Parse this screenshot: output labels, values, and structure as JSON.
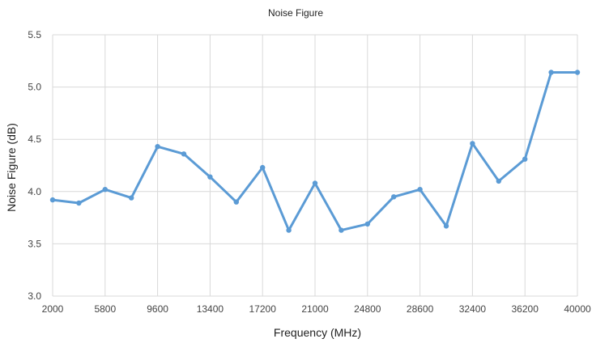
{
  "chart_data": {
    "type": "line",
    "title": "Noise Figure",
    "xlabel": "Frequency (MHz)",
    "ylabel": "Noise Figure (dB)",
    "xlim": [
      2000,
      40000
    ],
    "ylim": [
      3.0,
      5.5
    ],
    "x_tick_labels": [
      "2000",
      "5800",
      "9600",
      "13400",
      "17200",
      "21000",
      "24800",
      "28600",
      "32400",
      "36200",
      "40000"
    ],
    "y_tick_labels": [
      "3.0",
      "3.5",
      "4.0",
      "4.5",
      "5.0",
      "5.5"
    ],
    "grid": true,
    "legend": "none",
    "series": [
      {
        "color": "#5b9bd5",
        "x": [
          2000,
          3900,
          5800,
          7700,
          9600,
          11500,
          13400,
          15300,
          17200,
          19100,
          21000,
          22900,
          24800,
          26700,
          28600,
          30500,
          32400,
          34300,
          36200,
          38100,
          40000
        ],
        "y": [
          3.92,
          3.89,
          4.02,
          3.94,
          4.43,
          4.36,
          4.14,
          3.9,
          4.23,
          3.63,
          4.08,
          3.63,
          3.69,
          3.95,
          4.02,
          3.67,
          4.46,
          4.1,
          4.31,
          5.14,
          5.14
        ]
      }
    ]
  }
}
